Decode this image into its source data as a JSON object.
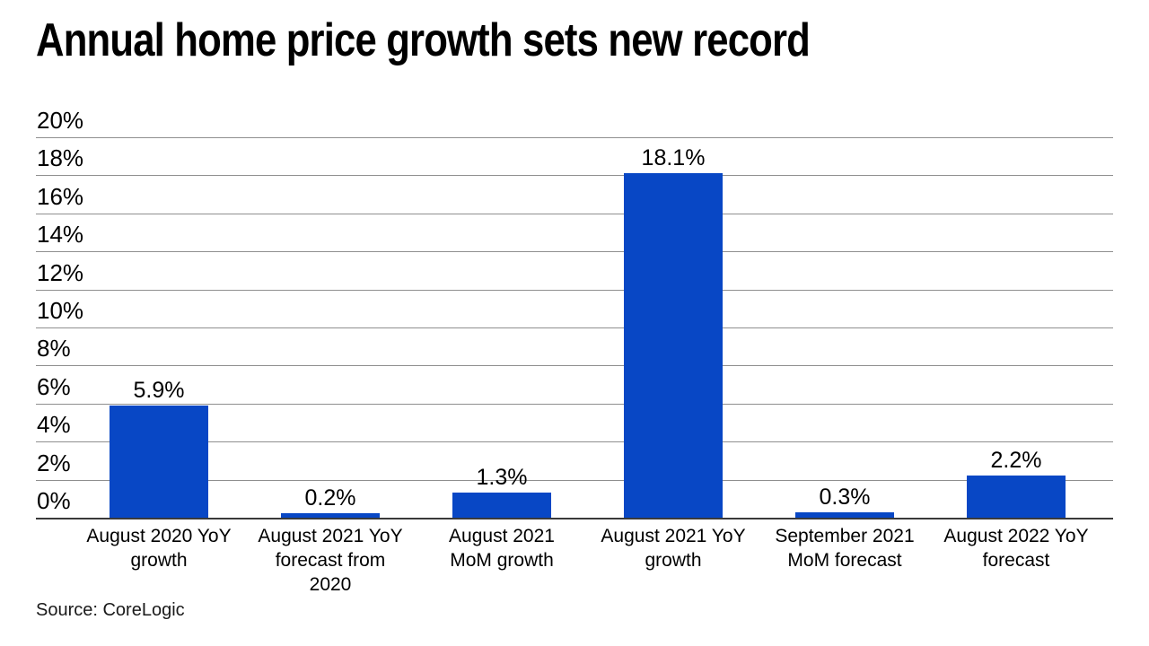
{
  "title": "Annual home price growth sets new record",
  "source": "Source: CoreLogic",
  "colors": {
    "bar": "#0847c5",
    "gridline": "#8f8f8f",
    "baseline": "#3a3a3a",
    "text": "#000000"
  },
  "chart_data": {
    "type": "bar",
    "title": "Annual home price growth sets new record",
    "categories": [
      "August 2020 YoY growth",
      "August 2021 YoY forecast from 2020",
      "August 2021 MoM growth",
      "August 2021 YoY growth",
      "September 2021 MoM forecast",
      "August 2022 YoY forecast"
    ],
    "category_label_lines": [
      [
        "August 2020 YoY",
        "growth"
      ],
      [
        "August 2021 YoY",
        "forecast from",
        "2020"
      ],
      [
        "August 2021",
        "MoM growth"
      ],
      [
        "August 2021 YoY",
        "growth"
      ],
      [
        "September 2021",
        "MoM forecast"
      ],
      [
        "August 2022 YoY",
        "forecast"
      ]
    ],
    "values": [
      5.9,
      0.2,
      1.3,
      18.1,
      0.3,
      2.2
    ],
    "data_labels": [
      "5.9%",
      "0.2%",
      "1.3%",
      "18.1%",
      "0.3%",
      "2.2%"
    ],
    "xlabel": "",
    "ylabel": "",
    "ylim": [
      0,
      20
    ],
    "ytick_step": 2,
    "ytick_labels": [
      "0%",
      "2%",
      "4%",
      "6%",
      "8%",
      "10%",
      "12%",
      "14%",
      "16%",
      "18%",
      "20%"
    ],
    "grid": "horizontal",
    "legend": "none",
    "bar_color": "#0847c5",
    "source": "Source: CoreLogic"
  }
}
